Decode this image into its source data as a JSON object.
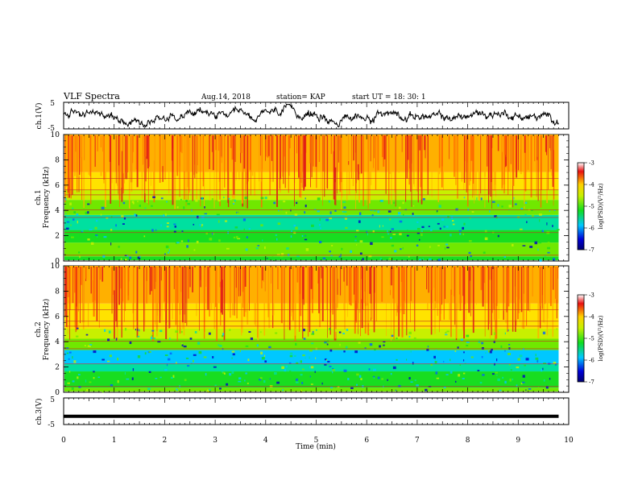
{
  "header": {
    "title": "VLF Spectra",
    "date": "Aug.14, 2018",
    "station": "station= KAP",
    "start": "start  UT  =   18: 30: 1"
  },
  "colors": {
    "spectrum_low": "#0000c8",
    "spectrum_mid_low": "#00d8ff",
    "spectrum_mid": "#18dd20",
    "spectrum_mid_high": "#ffe300",
    "spectrum_high": "#e01818",
    "trace": "#000000"
  },
  "chart_data": [
    {
      "type": "line",
      "name": "ch1-voltage",
      "ylabel": "ch.1(V)",
      "ylim": [
        -5,
        5
      ],
      "yticks": [
        "5",
        "-5"
      ],
      "xlim": [
        0,
        10
      ],
      "note_series": "noisy waveform fluctuating roughly between -4 and 4 V over 0 to 9.8 min"
    },
    {
      "type": "heatmap",
      "name": "ch1-spectrogram",
      "ylabel": "ch.1 Frequency (kHz)",
      "ylim": [
        0,
        10
      ],
      "yticks": [
        "0",
        "2",
        "4",
        "6",
        "8",
        "10"
      ],
      "xlim": [
        0,
        10
      ],
      "colorbar": {
        "label": "log(PSD)(V²/Hz)",
        "range": [
          -7,
          -3
        ],
        "ticks": [
          "-3",
          "-4",
          "-5",
          "-6",
          "-7"
        ]
      }
    },
    {
      "type": "heatmap",
      "name": "ch2-spectrogram",
      "ylabel": "ch.2 Frequency (kHz)",
      "ylim": [
        0,
        10
      ],
      "yticks": [
        "0",
        "2",
        "4",
        "6",
        "8",
        "10"
      ],
      "xlim": [
        0,
        10
      ],
      "colorbar": {
        "label": "log(PSD)(V²/Hz)",
        "range": [
          -7,
          -3
        ],
        "ticks": [
          "-3",
          "-4",
          "-5",
          "-6",
          "-7"
        ]
      }
    },
    {
      "type": "line",
      "name": "ch3-voltage",
      "ylabel": "ch.3(V)",
      "ylim": [
        -5,
        5
      ],
      "yticks": [
        "5",
        "-5"
      ],
      "xlim": [
        0,
        10
      ],
      "x": [
        0,
        9.8
      ],
      "y": [
        -2,
        -2
      ]
    }
  ],
  "xaxis": {
    "label": "Time  (min)",
    "ticks": [
      "0",
      "1",
      "2",
      "3",
      "4",
      "5",
      "6",
      "7",
      "8",
      "9",
      "10"
    ]
  }
}
